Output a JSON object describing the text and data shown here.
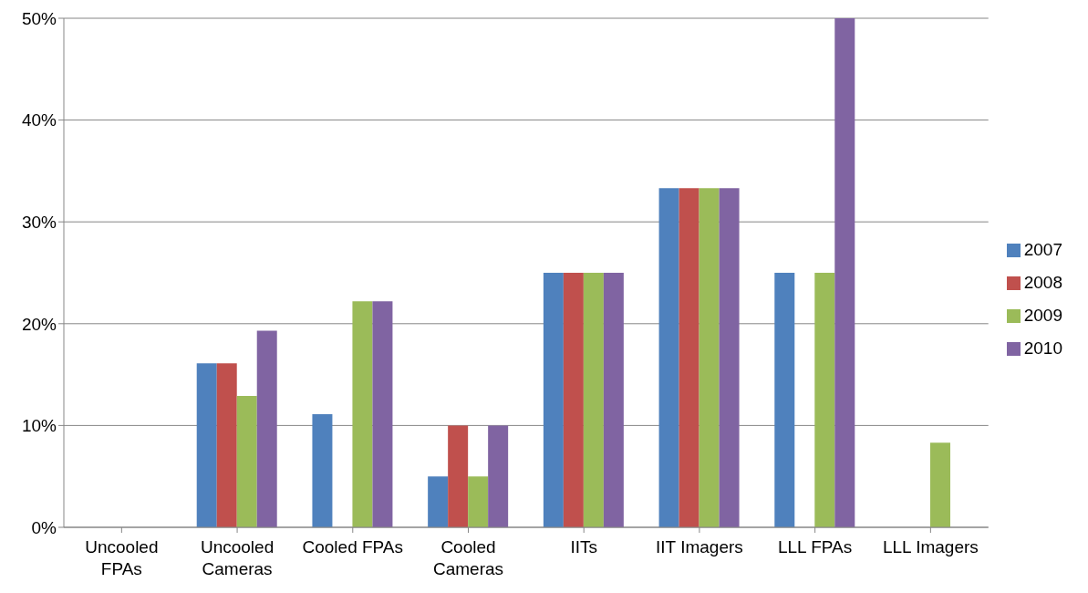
{
  "chart_data": {
    "type": "bar",
    "categories": [
      "Uncooled FPAs",
      "Uncooled Cameras",
      "Cooled FPAs",
      "Cooled Cameras",
      "IITs",
      "IIT Imagers",
      "LLL FPAs",
      "LLL Imagers"
    ],
    "series": [
      {
        "name": "2007",
        "color": "#4f81bd",
        "values": [
          0,
          16.1,
          11.1,
          5,
          25,
          33.3,
          25,
          0
        ]
      },
      {
        "name": "2008",
        "color": "#c0504d",
        "values": [
          0,
          16.1,
          0,
          10,
          25,
          33.3,
          0,
          0
        ]
      },
      {
        "name": "2009",
        "color": "#9bbb59",
        "values": [
          0,
          12.9,
          22.2,
          5,
          25,
          33.3,
          25,
          8.3
        ]
      },
      {
        "name": "2010",
        "color": "#8064a2",
        "values": [
          0,
          19.3,
          22.2,
          10,
          25,
          33.3,
          50,
          0
        ]
      }
    ],
    "ylim": [
      0,
      50
    ],
    "yticks": [
      {
        "value": 0,
        "label": "0%"
      },
      {
        "value": 10,
        "label": "10%"
      },
      {
        "value": 20,
        "label": "20%"
      },
      {
        "value": 30,
        "label": "30%"
      },
      {
        "value": 40,
        "label": "40%"
      },
      {
        "value": 50,
        "label": "50%"
      }
    ],
    "grid": "y",
    "legend": "right"
  }
}
